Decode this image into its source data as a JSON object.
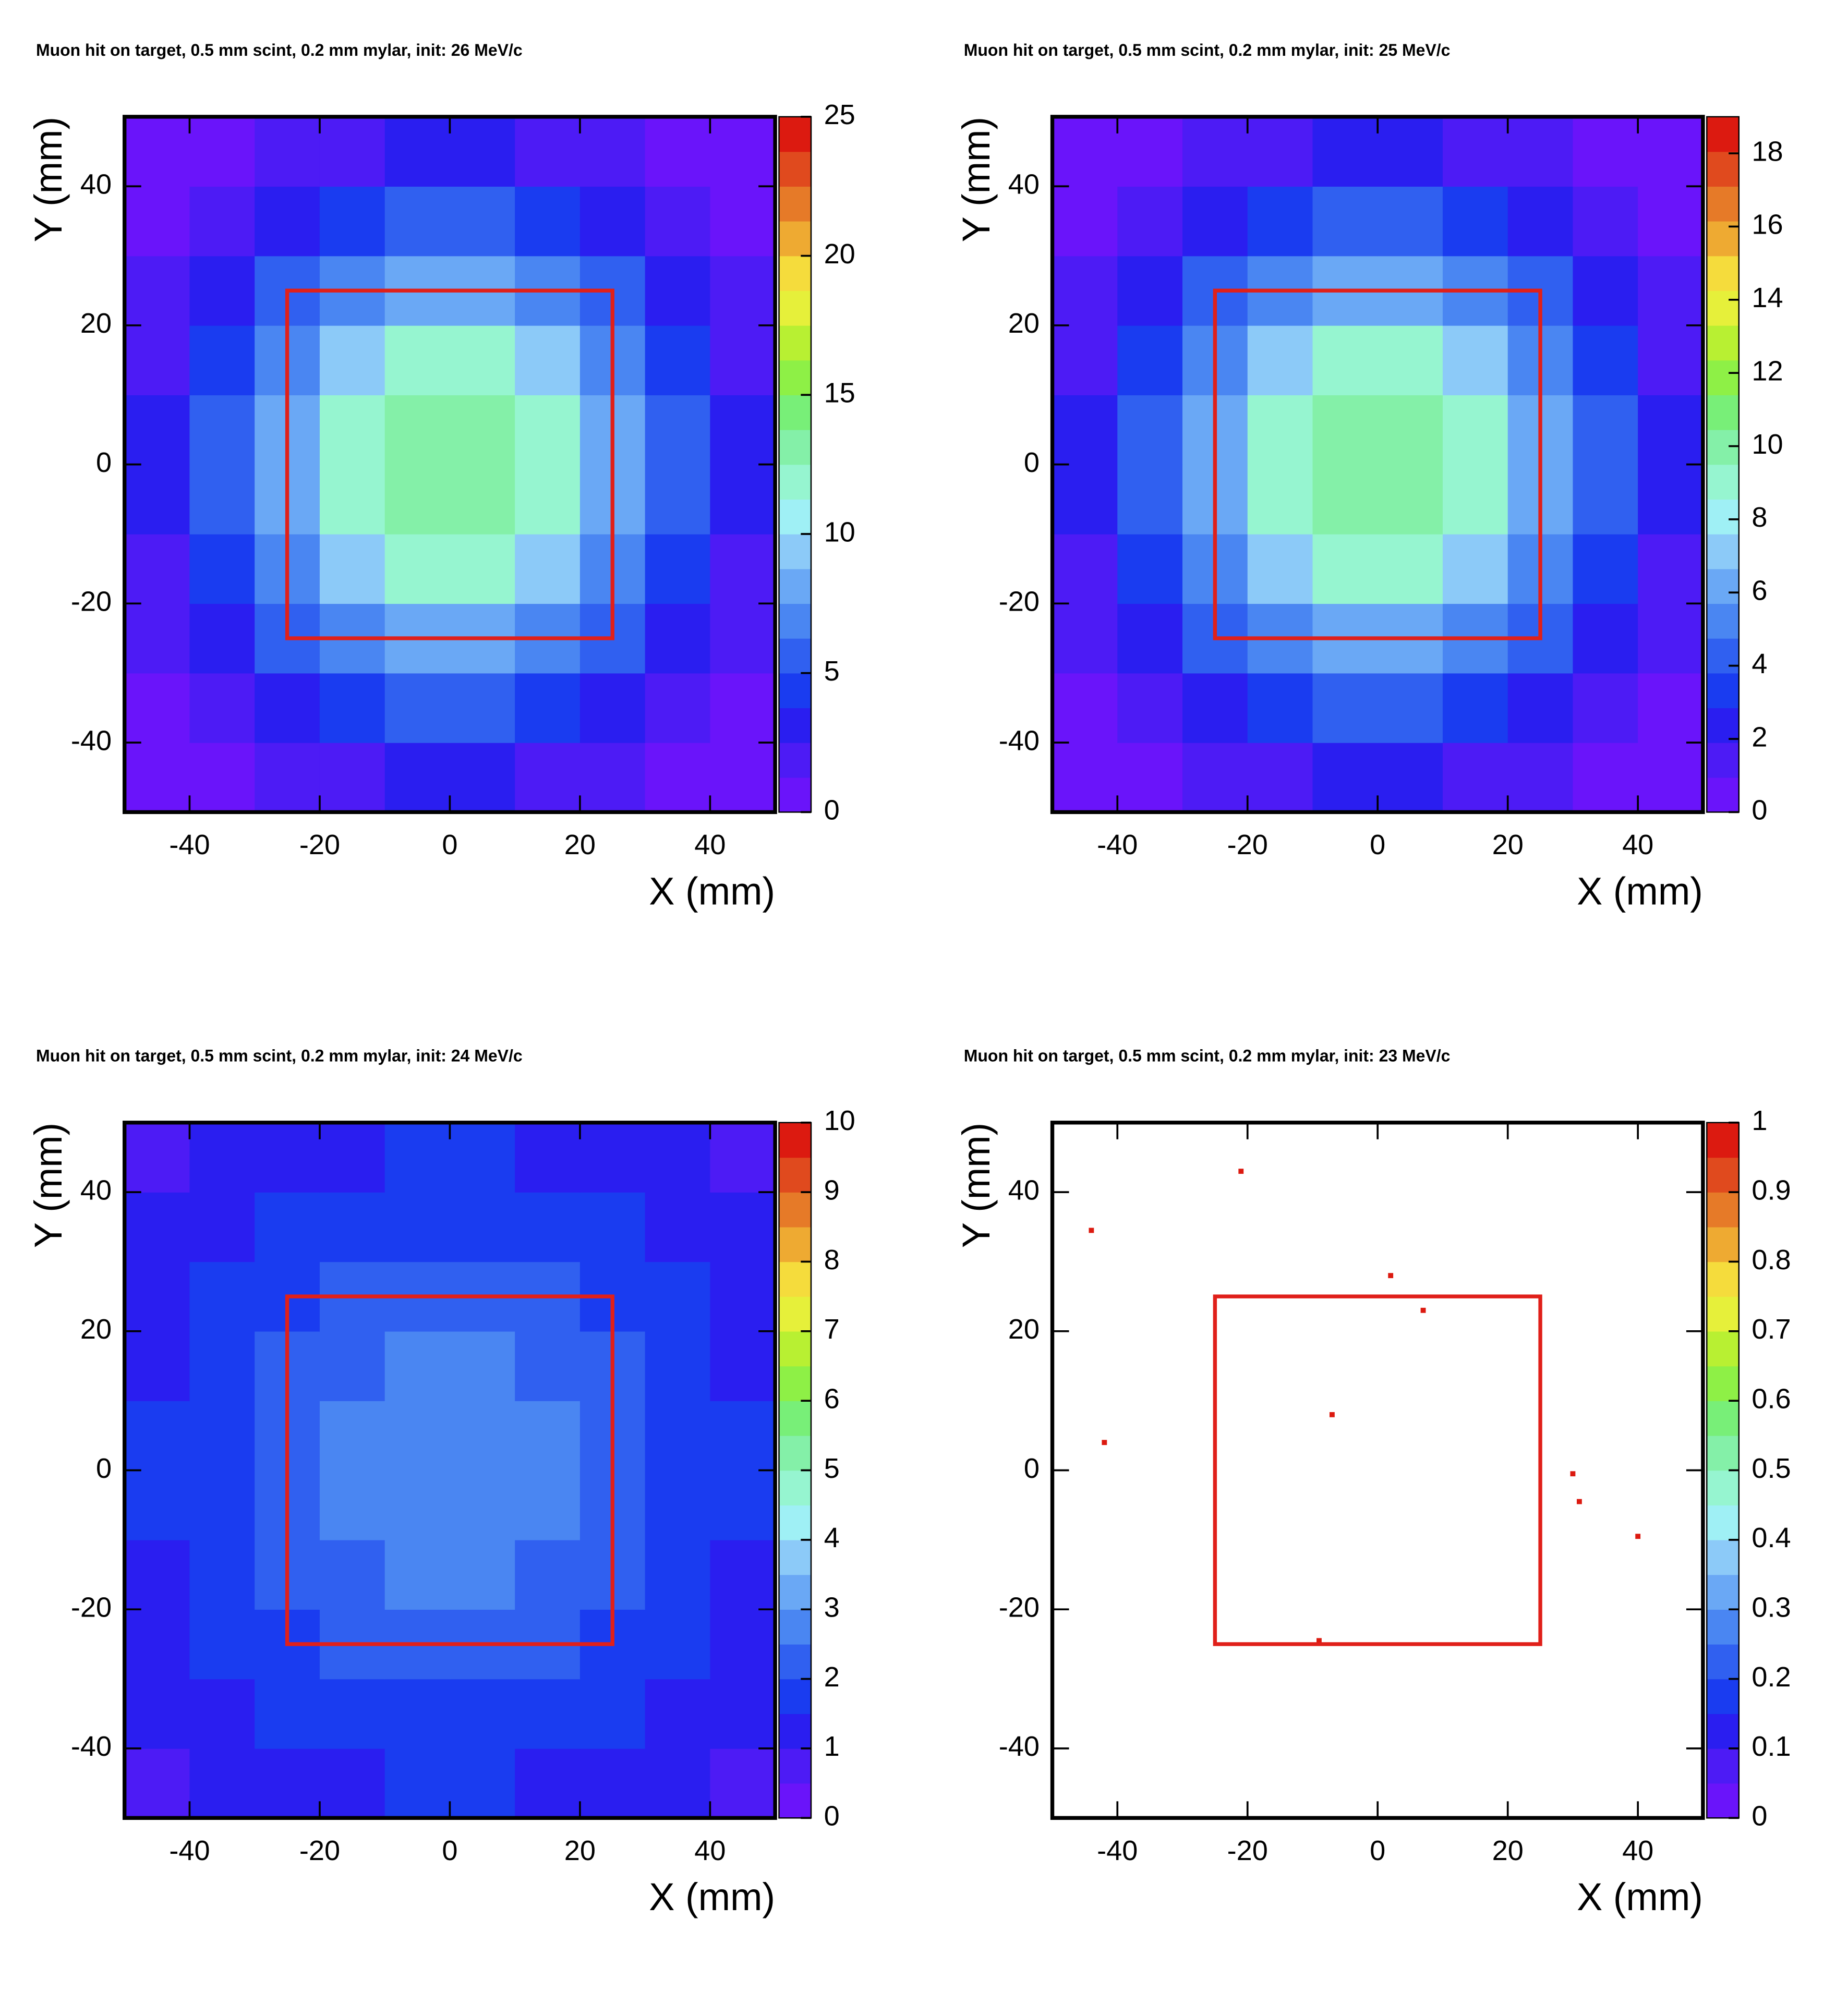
{
  "chart_data": [
    {
      "type": "heatmap",
      "title": "Muon hit on target, 0.5 mm scint, 0.2 mm mylar, init: 26 MeV/c",
      "xlabel": "X (mm)",
      "ylabel": "Y (mm)",
      "xlim": [
        -50,
        50
      ],
      "ylim": [
        -50,
        50
      ],
      "xticks": [
        -40,
        -20,
        0,
        20,
        40
      ],
      "yticks": [
        -40,
        -20,
        0,
        20,
        40
      ],
      "zlim": [
        0,
        25
      ],
      "zticks": [
        0,
        5,
        10,
        15,
        20,
        25
      ],
      "palette": [
        "#6a14fa",
        "#4d1bf5",
        "#2a1ef0",
        "#1a3cf0",
        "#3060f0",
        "#4a86f2",
        "#6aa8f5",
        "#8ccaf8",
        "#9ff0f5",
        "#96f5d0",
        "#84f0a8",
        "#78ef78",
        "#8ef046",
        "#b8f032",
        "#e6f03a",
        "#f5dc3c",
        "#eeaa32",
        "#e67a28",
        "#e04a1e",
        "#dc1a10"
      ],
      "xbins": [
        -50,
        -40,
        -30,
        -20,
        -10,
        0,
        10,
        20,
        30,
        40,
        50
      ],
      "ybins": [
        -50,
        -40,
        -30,
        -20,
        -10,
        0,
        10,
        20,
        30,
        40,
        50
      ],
      "values": [
        [
          0.6,
          1.0,
          1.7,
          2.3,
          2.7,
          2.7,
          2.3,
          1.7,
          1.0,
          0.6
        ],
        [
          1.0,
          2.0,
          3.2,
          4.4,
          5.2,
          5.2,
          4.4,
          3.2,
          2.0,
          1.0
        ],
        [
          1.7,
          3.2,
          5.2,
          7.1,
          8.3,
          8.3,
          7.1,
          5.2,
          3.2,
          1.7
        ],
        [
          2.3,
          4.4,
          7.1,
          9.8,
          11.5,
          11.5,
          9.8,
          7.1,
          4.4,
          2.3
        ],
        [
          2.7,
          5.2,
          8.3,
          11.5,
          13.5,
          13.5,
          11.5,
          8.3,
          5.2,
          2.7
        ],
        [
          2.7,
          5.2,
          8.3,
          11.5,
          13.5,
          13.5,
          11.5,
          8.3,
          5.2,
          2.7
        ],
        [
          2.3,
          4.4,
          7.1,
          9.8,
          11.5,
          11.5,
          9.8,
          7.1,
          4.4,
          2.3
        ],
        [
          1.7,
          3.2,
          5.2,
          7.1,
          8.3,
          8.3,
          7.1,
          5.2,
          3.2,
          1.7
        ],
        [
          1.0,
          2.0,
          3.2,
          4.4,
          5.2,
          5.2,
          4.4,
          3.2,
          2.0,
          1.0
        ],
        [
          0.6,
          1.0,
          1.7,
          2.3,
          2.7,
          2.7,
          2.3,
          1.7,
          1.0,
          0.6
        ]
      ],
      "box": {
        "x": [
          -25,
          25
        ],
        "y": [
          -25,
          25
        ],
        "color": "#e0201a"
      }
    },
    {
      "type": "heatmap",
      "title": "Muon hit on target, 0.5 mm scint, 0.2 mm mylar, init: 25 MeV/c",
      "xlabel": "X (mm)",
      "ylabel": "Y (mm)",
      "xlim": [
        -50,
        50
      ],
      "ylim": [
        -50,
        50
      ],
      "xticks": [
        -40,
        -20,
        0,
        20,
        40
      ],
      "yticks": [
        -40,
        -20,
        0,
        20,
        40
      ],
      "zlim": [
        0,
        19
      ],
      "zticks": [
        0,
        2,
        4,
        6,
        8,
        10,
        12,
        14,
        16,
        18
      ],
      "palette": [
        "#6a14fa",
        "#4d1bf5",
        "#2a1ef0",
        "#1a3cf0",
        "#3060f0",
        "#4a86f2",
        "#6aa8f5",
        "#8ccaf8",
        "#9ff0f5",
        "#96f5d0",
        "#84f0a8",
        "#78ef78",
        "#8ef046",
        "#b8f032",
        "#e6f03a",
        "#f5dc3c",
        "#eeaa32",
        "#e67a28",
        "#e04a1e",
        "#dc1a10"
      ],
      "xbins": [
        -50,
        -40,
        -30,
        -20,
        -10,
        0,
        10,
        20,
        30,
        40,
        50
      ],
      "ybins": [
        -50,
        -40,
        -30,
        -20,
        -10,
        0,
        10,
        20,
        30,
        40,
        50
      ],
      "values": [
        [
          0.4,
          0.8,
          1.3,
          1.7,
          2.0,
          2.0,
          1.7,
          1.3,
          0.8,
          0.4
        ],
        [
          0.8,
          1.5,
          2.4,
          3.3,
          3.9,
          3.9,
          3.3,
          2.4,
          1.5,
          0.8
        ],
        [
          1.3,
          2.4,
          3.9,
          5.3,
          6.2,
          6.2,
          5.3,
          3.9,
          2.4,
          1.3
        ],
        [
          1.7,
          3.3,
          5.3,
          7.3,
          8.6,
          8.6,
          7.3,
          5.3,
          3.3,
          1.7
        ],
        [
          2.0,
          3.9,
          6.2,
          8.6,
          10.1,
          10.1,
          8.6,
          6.2,
          3.9,
          2.0
        ],
        [
          2.0,
          3.9,
          6.2,
          8.6,
          10.1,
          10.1,
          8.6,
          6.2,
          3.9,
          2.0
        ],
        [
          1.7,
          3.3,
          5.3,
          7.3,
          8.6,
          8.6,
          7.3,
          5.3,
          3.3,
          1.7
        ],
        [
          1.3,
          2.4,
          3.9,
          5.3,
          6.2,
          6.2,
          5.3,
          3.9,
          2.4,
          1.3
        ],
        [
          0.8,
          1.5,
          2.4,
          3.3,
          3.9,
          3.9,
          3.3,
          2.4,
          1.5,
          0.8
        ],
        [
          0.4,
          0.8,
          1.3,
          1.7,
          2.0,
          2.0,
          1.7,
          1.3,
          0.8,
          0.4
        ]
      ],
      "box": {
        "x": [
          -25,
          25
        ],
        "y": [
          -25,
          25
        ],
        "color": "#e0201a"
      }
    },
    {
      "type": "heatmap",
      "title": "Muon hit on target, 0.5 mm scint, 0.2 mm mylar, init: 24 MeV/c",
      "xlabel": "X (mm)",
      "ylabel": "Y (mm)",
      "xlim": [
        -50,
        50
      ],
      "ylim": [
        -50,
        50
      ],
      "xticks": [
        -40,
        -20,
        0,
        20,
        40
      ],
      "yticks": [
        -40,
        -20,
        0,
        20,
        40
      ],
      "zlim": [
        0,
        10
      ],
      "zticks": [
        0,
        1,
        2,
        3,
        4,
        5,
        6,
        7,
        8,
        9,
        10
      ],
      "palette": [
        "#6a14fa",
        "#4d1bf5",
        "#2a1ef0",
        "#1a3cf0",
        "#3060f0",
        "#4a86f2",
        "#6aa8f5",
        "#8ccaf8",
        "#9ff0f5",
        "#96f5d0",
        "#84f0a8",
        "#78ef78",
        "#8ef046",
        "#b8f032",
        "#e6f03a",
        "#f5dc3c",
        "#eeaa32",
        "#e67a28",
        "#e04a1e",
        "#dc1a10"
      ],
      "xbins": [
        -50,
        -40,
        -30,
        -20,
        -10,
        0,
        10,
        20,
        30,
        40,
        50
      ],
      "ybins": [
        -50,
        -40,
        -30,
        -20,
        -10,
        0,
        10,
        20,
        30,
        40,
        50
      ],
      "values": [
        [
          0.8,
          1.0,
          1.2,
          1.4,
          1.5,
          1.5,
          1.4,
          1.2,
          1.0,
          0.8
        ],
        [
          1.0,
          1.3,
          1.6,
          1.8,
          1.9,
          1.9,
          1.8,
          1.6,
          1.3,
          1.0
        ],
        [
          1.2,
          1.6,
          1.9,
          2.1,
          2.3,
          2.3,
          2.1,
          1.9,
          1.6,
          1.2
        ],
        [
          1.4,
          1.8,
          2.1,
          2.4,
          2.6,
          2.6,
          2.4,
          2.1,
          1.8,
          1.4
        ],
        [
          1.5,
          1.9,
          2.3,
          2.6,
          2.7,
          2.7,
          2.6,
          2.3,
          1.9,
          1.5
        ],
        [
          1.5,
          1.9,
          2.3,
          2.6,
          2.7,
          2.7,
          2.6,
          2.3,
          1.9,
          1.5
        ],
        [
          1.4,
          1.8,
          2.1,
          2.4,
          2.6,
          2.6,
          2.4,
          2.1,
          1.8,
          1.4
        ],
        [
          1.2,
          1.6,
          1.9,
          2.1,
          2.3,
          2.3,
          2.1,
          1.9,
          1.6,
          1.2
        ],
        [
          1.0,
          1.3,
          1.6,
          1.8,
          1.9,
          1.9,
          1.8,
          1.6,
          1.3,
          1.0
        ],
        [
          0.8,
          1.0,
          1.2,
          1.4,
          1.5,
          1.5,
          1.4,
          1.2,
          1.0,
          0.8
        ]
      ],
      "box": {
        "x": [
          -25,
          25
        ],
        "y": [
          -25,
          25
        ],
        "color": "#e0201a"
      }
    },
    {
      "type": "heatmap",
      "title": "Muon hit on target, 0.5 mm scint, 0.2 mm mylar, init: 23 MeV/c",
      "xlabel": "X (mm)",
      "ylabel": "Y (mm)",
      "xlim": [
        -50,
        50
      ],
      "ylim": [
        -50,
        50
      ],
      "xticks": [
        -40,
        -20,
        0,
        20,
        40
      ],
      "yticks": [
        -40,
        -20,
        0,
        20,
        40
      ],
      "zlim": [
        0,
        1
      ],
      "zticks": [
        0,
        0.1,
        0.2,
        0.3,
        0.4,
        0.5,
        0.6,
        0.7,
        0.8,
        0.9,
        1
      ],
      "palette": [
        "#6a14fa",
        "#4d1bf5",
        "#2a1ef0",
        "#1a3cf0",
        "#3060f0",
        "#4a86f2",
        "#6aa8f5",
        "#8ccaf8",
        "#9ff0f5",
        "#96f5d0",
        "#84f0a8",
        "#78ef78",
        "#8ef046",
        "#b8f032",
        "#e6f03a",
        "#f5dc3c",
        "#eeaa32",
        "#e67a28",
        "#e04a1e",
        "#dc1a10"
      ],
      "points": {
        "x": [
          -44,
          -21,
          2,
          7,
          -7,
          -42,
          30,
          31,
          40,
          -9
        ],
        "y": [
          34.5,
          43,
          28,
          23,
          8,
          4,
          -0.5,
          -4.5,
          -9.5,
          -24.5
        ],
        "values": [
          1,
          1,
          1,
          1,
          1,
          1,
          1,
          1,
          1,
          1
        ]
      },
      "box": {
        "x": [
          -25,
          25
        ],
        "y": [
          -25,
          25
        ],
        "color": "#e0201a"
      }
    }
  ]
}
